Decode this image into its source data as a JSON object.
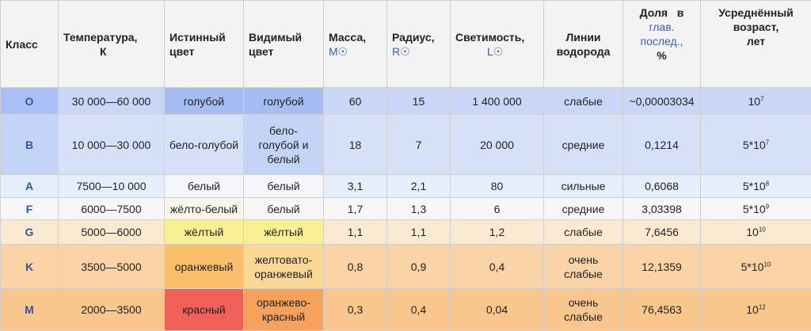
{
  "header": {
    "class": "Класс",
    "temperature": [
      "Температура,",
      "К"
    ],
    "true_color": [
      "Истинный",
      "цвет"
    ],
    "visible_color": [
      "Видимый",
      "цвет"
    ],
    "mass": [
      "Масса,",
      "M☉"
    ],
    "radius": [
      "Радиус,",
      "R☉"
    ],
    "luminosity": [
      "Светимость,",
      "L☉"
    ],
    "hydrogen": [
      "Линии",
      "водорода"
    ],
    "share": [
      "Доля   в",
      "глав.",
      "послед.,",
      "%"
    ],
    "age": [
      "Усреднённый",
      "возраст,",
      "лет"
    ]
  },
  "rows": [
    {
      "cls": "O",
      "temp": "30 000—60 000",
      "true": "голубой",
      "visible": [
        "голубой"
      ],
      "mass": "60",
      "radius": "15",
      "lum": "1 400 000",
      "h": [
        "слабые"
      ],
      "share": "~0,00003034",
      "age_base": "10",
      "age_exp": "7",
      "bg": "#c9d6f7",
      "cls_bg": "#a9bff5",
      "true_bg": "#a6bdf4",
      "vis_bg": "#a6bdf4"
    },
    {
      "cls": "B",
      "temp": "10 000—30 000",
      "true": "бело-голубой",
      "visible": [
        "бело-",
        "голубой и",
        "белый"
      ],
      "mass": "18",
      "radius": "7",
      "lum": "20 000",
      "h": [
        "средние"
      ],
      "share": "0,1214",
      "age_base": "5*10",
      "age_exp": "7",
      "bg": "#d6e1f8",
      "cls_bg": "#c4d4f6",
      "true_bg": "#d6e1f8",
      "vis_bg": "#c4d4f6"
    },
    {
      "cls": "A",
      "temp": "7500—10 000",
      "true": "белый",
      "visible": [
        "белый"
      ],
      "mass": "3,1",
      "radius": "2,1",
      "lum": "80",
      "h": [
        "сильные"
      ],
      "share": "0,6068",
      "age_base": "5*10",
      "age_exp": "8",
      "bg": "#e7eefb",
      "cls_bg": "#e7eefb",
      "true_bg": "#f4f6fc",
      "vis_bg": "#f4f6fc"
    },
    {
      "cls": "F",
      "temp": "6000—7500",
      "true": "жёлто-белый",
      "visible": [
        "белый"
      ],
      "mass": "1,7",
      "radius": "1,3",
      "lum": "6",
      "h": [
        "средние"
      ],
      "share": "3,03398",
      "age_base": "5*10",
      "age_exp": "9",
      "bg": "#f7f7f7",
      "cls_bg": "#f7f7f7",
      "true_bg": "#f9f7ec",
      "vis_bg": "#f6f6f6"
    },
    {
      "cls": "G",
      "temp": "5000—6000",
      "true": "жёлтый",
      "visible": [
        "жёлтый"
      ],
      "mass": "1,1",
      "radius": "1,1",
      "lum": "1,2",
      "h": [
        "слабые"
      ],
      "share": "7,6456",
      "age_base": "10",
      "age_exp": "10",
      "bg": "#fbead2",
      "cls_bg": "#fbead2",
      "true_bg": "#f9f093",
      "vis_bg": "#f9f093"
    },
    {
      "cls": "K",
      "temp": "3500—5000",
      "true": "оранжевый",
      "visible": [
        "желтовато-",
        "оранжевый"
      ],
      "mass": "0,8",
      "radius": "0,9",
      "lum": "0,4",
      "h": [
        "очень",
        "слабые"
      ],
      "share": "12,1359",
      "age_base": "5*10",
      "age_exp": "10",
      "bg": "#fad3a6",
      "cls_bg": "#fad3a6",
      "true_bg": "#f9bf6b",
      "vis_bg": "#f9d994"
    },
    {
      "cls": "M",
      "temp": "2000—3500",
      "true": "красный",
      "visible": [
        "оранжево-",
        "красный"
      ],
      "mass": "0,3",
      "radius": "0,4",
      "lum": "0,04",
      "h": [
        "очень",
        "слабые"
      ],
      "share": "76,4563",
      "age_base": "10",
      "age_exp": "12",
      "bg": "#f9c68d",
      "cls_bg": "#f9c68d",
      "true_bg": "#f2605a",
      "vis_bg": "#f5a35c"
    }
  ]
}
